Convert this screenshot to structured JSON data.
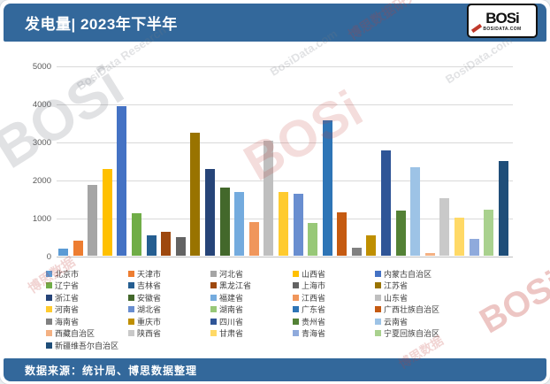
{
  "header": {
    "title": "发电量| 2023年下半年",
    "logo": {
      "brand": "BOSi",
      "site": "BOSIDATA.COM"
    }
  },
  "footer": {
    "source": "数据来源：统计局、博思数据整理"
  },
  "watermarks": {
    "big_gray": "BOSi",
    "big_red": "BOSi",
    "gray_text": "BosiData.com",
    "gray_text2": "BosiData Research",
    "red_text": "博思数据研究",
    "red_text2": "博思数据"
  },
  "chart_data": {
    "type": "bar",
    "title": "发电量| 2023年下半年",
    "xlabel": "",
    "ylabel": "",
    "ylim": [
      0,
      5000
    ],
    "yticks": [
      0,
      1000,
      2000,
      3000,
      4000,
      5000
    ],
    "grid": true,
    "legend_position": "bottom",
    "categories": [
      "北京市",
      "天津市",
      "河北省",
      "山西省",
      "内蒙古自治区",
      "辽宁省",
      "吉林省",
      "黑龙江省",
      "上海市",
      "江苏省",
      "浙江省",
      "安徽省",
      "福建省",
      "江西省",
      "山东省",
      "河南省",
      "湖北省",
      "湖南省",
      "广东省",
      "广西壮族自治区",
      "海南省",
      "重庆市",
      "四川省",
      "贵州省",
      "云南省",
      "西藏自治区",
      "陕西省",
      "甘肃省",
      "青海省",
      "宁夏回族自治区",
      "新疆维吾尔自治区"
    ],
    "values": [
      180,
      390,
      1870,
      2270,
      3930,
      1120,
      530,
      620,
      500,
      3230,
      2290,
      1780,
      1670,
      880,
      3020,
      1680,
      1620,
      850,
      3560,
      1150,
      220,
      530,
      2760,
      1190,
      2320,
      60,
      1520,
      990,
      450,
      1210,
      2500
    ],
    "colors": [
      "#5B9BD5",
      "#ED7D31",
      "#A5A5A5",
      "#FFC000",
      "#4472C4",
      "#70AD47",
      "#255E91",
      "#9E480E",
      "#636363",
      "#997300",
      "#264478",
      "#43682B",
      "#74ABDE",
      "#F0965B",
      "#BFBFBF",
      "#FFCB2F",
      "#698ED0",
      "#98C878",
      "#2E75B6",
      "#C55A11",
      "#808080",
      "#BF8F00",
      "#2F5597",
      "#538135",
      "#9DC3E6",
      "#F4B183",
      "#C9C9C9",
      "#FFD966",
      "#8FAADC",
      "#A9D18E",
      "#1F4E79"
    ],
    "accent_color": "#33689B"
  }
}
